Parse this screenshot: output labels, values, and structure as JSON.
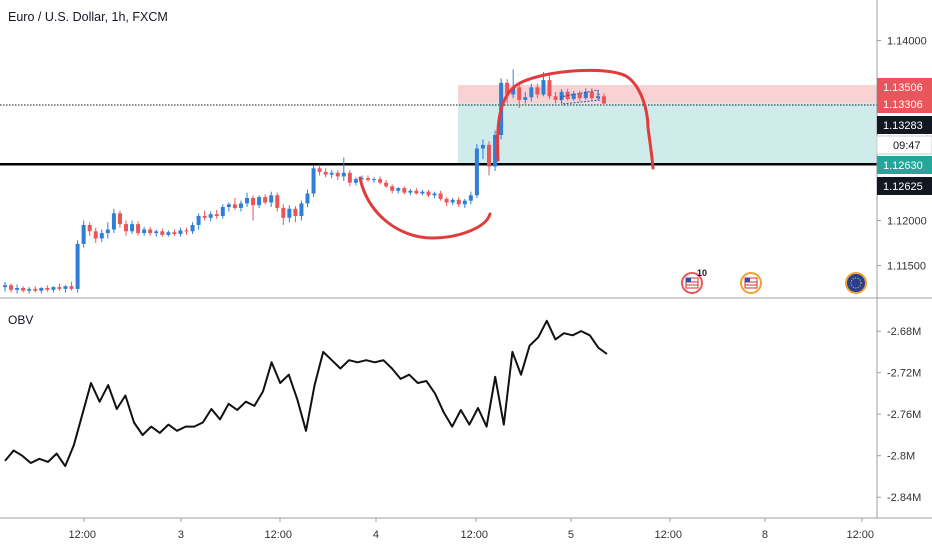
{
  "header": {
    "symbol_title": "Euro / U.S. Dollar, 1h, FXCM"
  },
  "indicator": {
    "name": "OBV"
  },
  "colors": {
    "up": "#2f7fd8",
    "down": "#e8555a",
    "stop_zone": "#f9d2d3",
    "target_zone": "#cfecea",
    "annotation": "#e03c3c",
    "axis_text": "#333333",
    "obv_line": "#111111"
  },
  "price_axis": {
    "ticks": [
      "1.14000",
      "1.12000",
      "1.11500"
    ],
    "badges": [
      {
        "label": "1.13506",
        "value": 1.13506,
        "bg": "#e8555a",
        "fg": "#ffffff"
      },
      {
        "label": "1.13306",
        "value": 1.13306,
        "bg": "#e8555a",
        "fg": "#ffffff"
      },
      {
        "label": "1.13283",
        "value": 1.13283,
        "bg": "#131722",
        "fg": "#ffffff"
      },
      {
        "label": "09:47",
        "value": null,
        "bg": "#ffffff",
        "fg": "#131722"
      },
      {
        "label": "1.12630",
        "value": 1.1263,
        "bg": "#26a69a",
        "fg": "#ffffff"
      },
      {
        "label": "1.12625",
        "value": 1.12625,
        "bg": "#131722",
        "fg": "#ffffff"
      }
    ]
  },
  "obv_axis": {
    "ticks": [
      "-2.68M",
      "-2.72M",
      "-2.76M",
      "-2.8M",
      "-2.84M"
    ]
  },
  "time_axis": {
    "labels": [
      "12:00",
      "3",
      "12:00",
      "4",
      "12:00",
      "5",
      "12:00",
      "8",
      "12:00"
    ]
  },
  "events": {
    "badge_count": "10"
  },
  "chart_data": [
    {
      "type": "candlestick",
      "title": "Euro / U.S. Dollar, 1h, FXCM",
      "ylim": [
        1.1115,
        1.1445
      ],
      "support_level": 1.12625,
      "current_price": 1.13283,
      "position": {
        "entry": 1.13306,
        "stop": 1.13506,
        "target": 1.1263
      },
      "x_labels": [
        "12:00",
        "3",
        "12:00",
        "4",
        "12:00",
        "5",
        "12:00",
        "8",
        "12:00"
      ],
      "series": [
        [
          1.1126,
          1.1132,
          1.1121,
          1.1128
        ],
        [
          1.1128,
          1.113,
          1.112,
          1.1123
        ],
        [
          1.1123,
          1.1129,
          1.1119,
          1.1125
        ],
        [
          1.1125,
          1.1127,
          1.112,
          1.1122
        ],
        [
          1.1122,
          1.1126,
          1.1119,
          1.1124
        ],
        [
          1.1124,
          1.1127,
          1.112,
          1.1122
        ],
        [
          1.1122,
          1.1126,
          1.1119,
          1.1125
        ],
        [
          1.1125,
          1.1128,
          1.1121,
          1.1123
        ],
        [
          1.1123,
          1.1127,
          1.112,
          1.1126
        ],
        [
          1.1126,
          1.113,
          1.1122,
          1.1124
        ],
        [
          1.1124,
          1.1128,
          1.112,
          1.1127
        ],
        [
          1.1127,
          1.1132,
          1.1122,
          1.1124
        ],
        [
          1.1124,
          1.1178,
          1.112,
          1.1174
        ],
        [
          1.1174,
          1.12,
          1.117,
          1.1195
        ],
        [
          1.1195,
          1.1198,
          1.1183,
          1.1188
        ],
        [
          1.1188,
          1.1192,
          1.1175,
          1.118
        ],
        [
          1.118,
          1.119,
          1.1176,
          1.1186
        ],
        [
          1.1186,
          1.1198,
          1.118,
          1.119
        ],
        [
          1.119,
          1.1213,
          1.1186,
          1.1208
        ],
        [
          1.1208,
          1.1211,
          1.1192,
          1.1196
        ],
        [
          1.1196,
          1.12,
          1.1183,
          1.1188
        ],
        [
          1.1188,
          1.12,
          1.1185,
          1.1196
        ],
        [
          1.1196,
          1.1199,
          1.1183,
          1.1186
        ],
        [
          1.1186,
          1.1193,
          1.1183,
          1.119
        ],
        [
          1.119,
          1.1193,
          1.1183,
          1.1186
        ],
        [
          1.1186,
          1.119,
          1.1182,
          1.1188
        ],
        [
          1.1188,
          1.1191,
          1.1182,
          1.1184
        ],
        [
          1.1184,
          1.1189,
          1.1182,
          1.1187
        ],
        [
          1.1187,
          1.119,
          1.1183,
          1.1185
        ],
        [
          1.1185,
          1.1192,
          1.1182,
          1.1189
        ],
        [
          1.1189,
          1.1192,
          1.1184,
          1.1188
        ],
        [
          1.1188,
          1.1198,
          1.1185,
          1.1195
        ],
        [
          1.1195,
          1.1208,
          1.119,
          1.1205
        ],
        [
          1.1205,
          1.1211,
          1.12,
          1.1203
        ],
        [
          1.1203,
          1.121,
          1.1199,
          1.1207
        ],
        [
          1.1207,
          1.1212,
          1.1202,
          1.1205
        ],
        [
          1.1205,
          1.1218,
          1.1202,
          1.1215
        ],
        [
          1.1215,
          1.122,
          1.121,
          1.1218
        ],
        [
          1.1218,
          1.1225,
          1.1212,
          1.1214
        ],
        [
          1.1214,
          1.1222,
          1.121,
          1.1219
        ],
        [
          1.1219,
          1.1231,
          1.1215,
          1.1225
        ],
        [
          1.1225,
          1.1228,
          1.12,
          1.1217
        ],
        [
          1.1217,
          1.1228,
          1.1214,
          1.1226
        ],
        [
          1.1226,
          1.1229,
          1.1218,
          1.122
        ],
        [
          1.122,
          1.1232,
          1.1215,
          1.1228
        ],
        [
          1.1228,
          1.1231,
          1.121,
          1.1214
        ],
        [
          1.1214,
          1.1218,
          1.1195,
          1.1203
        ],
        [
          1.1203,
          1.1217,
          1.1198,
          1.1213
        ],
        [
          1.1213,
          1.1216,
          1.1198,
          1.1205
        ],
        [
          1.1205,
          1.1222,
          1.12,
          1.1219
        ],
        [
          1.1219,
          1.1234,
          1.1215,
          1.123
        ],
        [
          1.123,
          1.1261,
          1.1226,
          1.1258
        ],
        [
          1.1258,
          1.1262,
          1.125,
          1.1254
        ],
        [
          1.1254,
          1.1258,
          1.1248,
          1.1251
        ],
        [
          1.1251,
          1.1256,
          1.1247,
          1.1253
        ],
        [
          1.1253,
          1.1256,
          1.1245,
          1.1249
        ],
        [
          1.1249,
          1.127,
          1.1244,
          1.1253
        ],
        [
          1.1253,
          1.1256,
          1.1238,
          1.1242
        ],
        [
          1.1242,
          1.1248,
          1.1239,
          1.1246
        ],
        [
          1.1246,
          1.125,
          1.1243,
          1.1247
        ],
        [
          1.1247,
          1.125,
          1.1243,
          1.1245
        ],
        [
          1.1245,
          1.1248,
          1.1242,
          1.1246
        ],
        [
          1.1246,
          1.1249,
          1.124,
          1.1242
        ],
        [
          1.1242,
          1.1245,
          1.1236,
          1.1238
        ],
        [
          1.1238,
          1.124,
          1.123,
          1.1233
        ],
        [
          1.1233,
          1.1237,
          1.123,
          1.1236
        ],
        [
          1.1236,
          1.1238,
          1.1229,
          1.1231
        ],
        [
          1.1231,
          1.1235,
          1.1228,
          1.1233
        ],
        [
          1.1233,
          1.1236,
          1.1229,
          1.123
        ],
        [
          1.123,
          1.1234,
          1.1228,
          1.1232
        ],
        [
          1.1232,
          1.1234,
          1.1226,
          1.1228
        ],
        [
          1.1228,
          1.1232,
          1.1225,
          1.123
        ],
        [
          1.123,
          1.1233,
          1.1222,
          1.1224
        ],
        [
          1.1224,
          1.1226,
          1.1216,
          1.122
        ],
        [
          1.122,
          1.1225,
          1.1217,
          1.1223
        ],
        [
          1.1223,
          1.1226,
          1.1215,
          1.1218
        ],
        [
          1.1218,
          1.1224,
          1.1214,
          1.1222
        ],
        [
          1.1222,
          1.1232,
          1.1218,
          1.1228
        ],
        [
          1.1228,
          1.1285,
          1.1225,
          1.128
        ],
        [
          1.128,
          1.129,
          1.1268,
          1.1284
        ],
        [
          1.1284,
          1.1288,
          1.125,
          1.126
        ],
        [
          1.126,
          1.13,
          1.1255,
          1.1295
        ],
        [
          1.1295,
          1.1358,
          1.129,
          1.1353
        ],
        [
          1.1353,
          1.1357,
          1.133,
          1.134
        ],
        [
          1.134,
          1.1368,
          1.1336,
          1.1348
        ],
        [
          1.1348,
          1.1352,
          1.1325,
          1.1334
        ],
        [
          1.1334,
          1.1343,
          1.133,
          1.1337
        ],
        [
          1.1337,
          1.1352,
          1.1332,
          1.1348
        ],
        [
          1.1348,
          1.1352,
          1.1336,
          1.134
        ],
        [
          1.134,
          1.1365,
          1.1338,
          1.1356
        ],
        [
          1.1356,
          1.1361,
          1.1335,
          1.1338
        ],
        [
          1.1338,
          1.1343,
          1.133,
          1.1334
        ],
        [
          1.1334,
          1.1346,
          1.1332,
          1.1343
        ],
        [
          1.1343,
          1.1346,
          1.1333,
          1.1335
        ],
        [
          1.1335,
          1.1344,
          1.1333,
          1.1341
        ],
        [
          1.1341,
          1.1344,
          1.1333,
          1.1336
        ],
        [
          1.1336,
          1.1347,
          1.1334,
          1.1343
        ],
        [
          1.1343,
          1.1347,
          1.1334,
          1.1336
        ],
        [
          1.1336,
          1.1344,
          1.1334,
          1.1338
        ],
        [
          1.1338,
          1.1341,
          1.1328,
          1.133
        ]
      ]
    },
    {
      "type": "line",
      "name": "OBV",
      "ylim": [
        -2.86,
        -2.65
      ],
      "values": [
        -2.805,
        -2.795,
        -2.8,
        -2.807,
        -2.803,
        -2.806,
        -2.798,
        -2.81,
        -2.79,
        -2.76,
        -2.73,
        -2.748,
        -2.732,
        -2.755,
        -2.742,
        -2.768,
        -2.78,
        -2.772,
        -2.778,
        -2.77,
        -2.776,
        -2.772,
        -2.772,
        -2.768,
        -2.755,
        -2.765,
        -2.75,
        -2.756,
        -2.748,
        -2.752,
        -2.738,
        -2.71,
        -2.73,
        -2.722,
        -2.746,
        -2.776,
        -2.732,
        -2.7,
        -2.708,
        -2.716,
        -2.708,
        -2.71,
        -2.708,
        -2.71,
        -2.708,
        -2.716,
        -2.726,
        -2.722,
        -2.73,
        -2.728,
        -2.74,
        -2.758,
        -2.772,
        -2.756,
        -2.77,
        -2.754,
        -2.772,
        -2.724,
        -2.77,
        -2.7,
        -2.722,
        -2.694,
        -2.686,
        -2.67,
        -2.688,
        -2.682,
        -2.684,
        -2.68,
        -2.684,
        -2.696,
        -2.702
      ]
    }
  ]
}
